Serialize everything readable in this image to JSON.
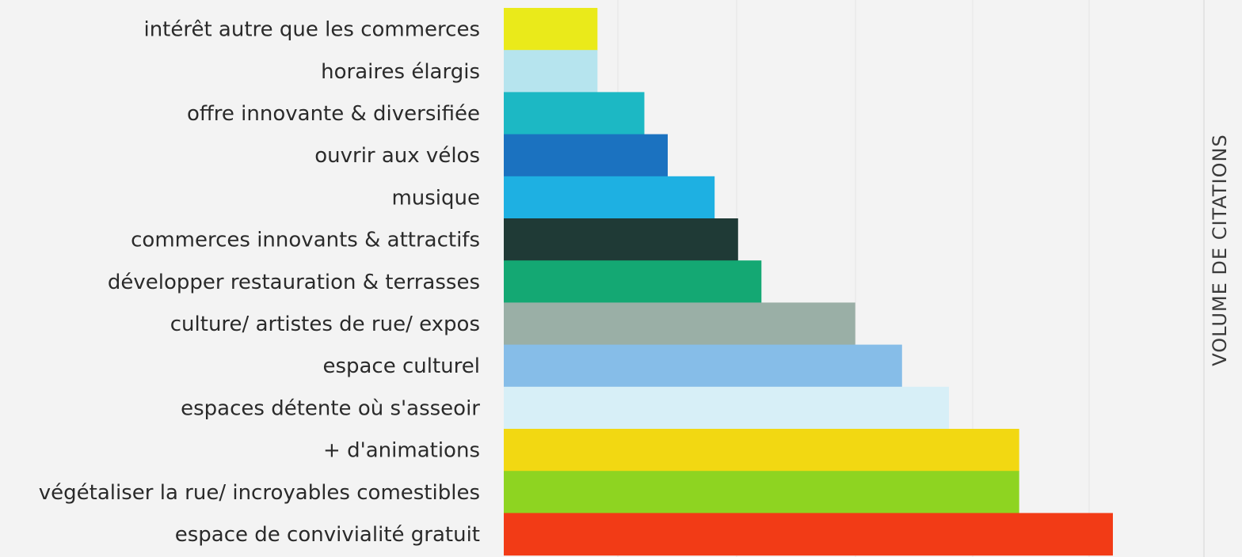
{
  "chart_data": {
    "type": "bar",
    "orientation": "horizontal",
    "categories": [
      "intérêt autre que les commerces",
      "horaires élargis",
      "offre innovante & diversifiée",
      "ouvrir aux vélos",
      "musique",
      "commerces innovants & attractifs",
      "développer restauration & terrasses",
      "culture/ artistes de rue/ expos",
      "espace culturel",
      "espaces détente où s'asseoir",
      "+ d'animations",
      "végétaliser la rue/ incroyables comestibles",
      "espace de convivialité gratuit"
    ],
    "values": [
      4,
      4,
      6,
      7,
      9,
      10,
      11,
      15,
      17,
      19,
      22,
      22,
      26
    ],
    "colors": [
      "#eaea1a",
      "#b6e4ee",
      "#1cb8c4",
      "#1b72c0",
      "#1eb0e2",
      "#1f3a36",
      "#14a873",
      "#9aafa6",
      "#86bde8",
      "#d7eff7",
      "#f2d812",
      "#8ed421",
      "#f23b16"
    ],
    "xlim": [
      0,
      26
    ],
    "grid": true,
    "axis_title": "VOLUME DE CITATIONS",
    "axis_title_position": "right",
    "title": "",
    "xlabel": "",
    "ylabel": ""
  }
}
